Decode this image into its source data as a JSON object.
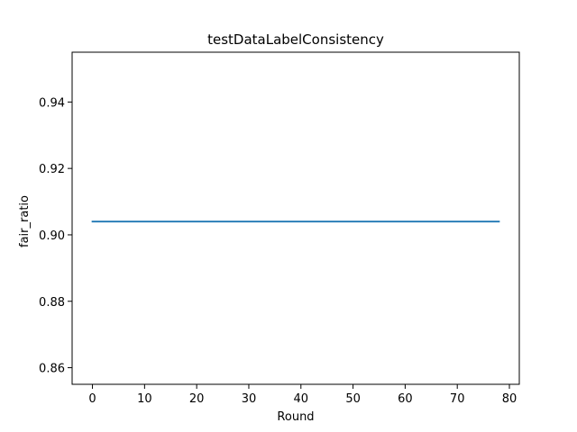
{
  "chart_data": {
    "type": "line",
    "title": "testDataLabelConsistency",
    "xlabel": "Round",
    "ylabel": "fair_ratio",
    "xlim": [
      -3.9,
      81.9
    ],
    "ylim": [
      0.855,
      0.955
    ],
    "xticks": [
      0,
      10,
      20,
      30,
      40,
      50,
      60,
      70,
      80
    ],
    "yticks": [
      0.86,
      0.88,
      0.9,
      0.92,
      0.94
    ],
    "ytick_labels": [
      "0.86",
      "0.88",
      "0.90",
      "0.92",
      "0.94"
    ],
    "grid": false,
    "series": [
      {
        "x": [
          0,
          78
        ],
        "y": [
          0.904,
          0.904
        ],
        "color": "#1f77b4"
      }
    ]
  }
}
